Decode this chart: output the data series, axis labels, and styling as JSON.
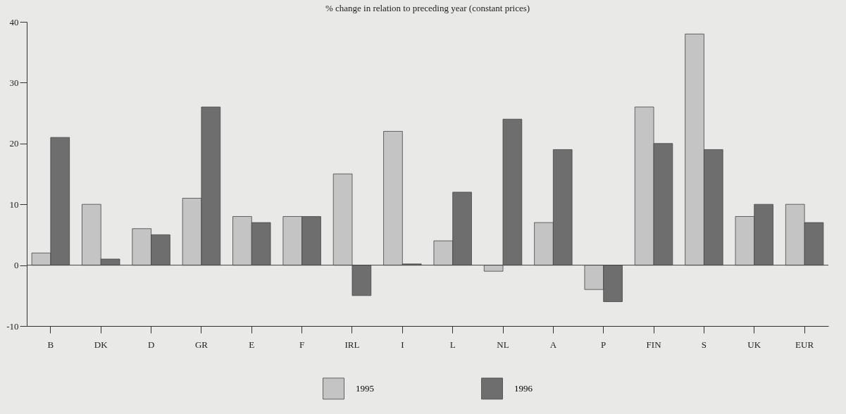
{
  "chart_data": {
    "type": "bar",
    "title": "% change in relation to preceding year (constant prices)",
    "categories": [
      "B",
      "DK",
      "D",
      "GR",
      "E",
      "F",
      "IRL",
      "I",
      "L",
      "NL",
      "A",
      "P",
      "FIN",
      "S",
      "UK",
      "EUR"
    ],
    "series": [
      {
        "name": "1995",
        "color": "#c4c4c4",
        "values": [
          2,
          10,
          6,
          11,
          8,
          8,
          15,
          22,
          4,
          -1,
          7,
          -4,
          26,
          38,
          8,
          10
        ]
      },
      {
        "name": "1996",
        "color": "#6e6e6e",
        "values": [
          21,
          1,
          5,
          26,
          7,
          8,
          -5,
          0.2,
          12,
          24,
          19,
          -6,
          20,
          19,
          10,
          7
        ]
      }
    ],
    "ylim": [
      -10,
      40
    ],
    "yticks": [
      -10,
      0,
      10,
      20,
      30,
      40
    ],
    "grid": false,
    "legend": "bottom",
    "ref_lines": [
      {
        "axis": "y",
        "value": 0
      }
    ]
  }
}
